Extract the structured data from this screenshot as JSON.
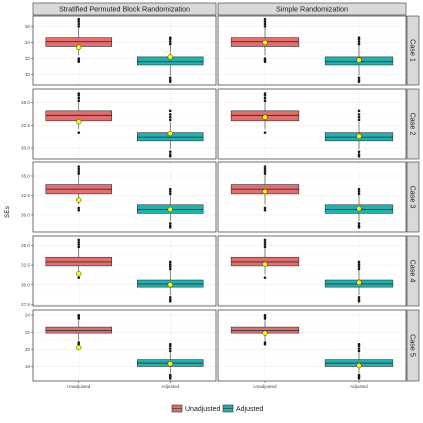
{
  "chart_data": {
    "type": "boxplot",
    "ylabel": "SEs",
    "columns": [
      "Stratified Permuted Block Randomization",
      "Simple Randomization"
    ],
    "rows": [
      "Case 1",
      "Case 2",
      "Case 3",
      "Case 4",
      "Case 5"
    ],
    "categories": [
      "Unadjusted",
      "Adjusted"
    ],
    "legend": {
      "position": "bottom",
      "entries": [
        {
          "name": "Unadjusted",
          "color": "#e26e6e"
        },
        {
          "name": "Adjusted",
          "color": "#1fb3b0"
        }
      ]
    },
    "colors": {
      "unadjusted": "#e26e6e",
      "adjusted": "#1fb3b0",
      "mean_marker": "#ffff00",
      "strip_bg": "#d9d9d9",
      "panel_border": "#333333",
      "grid": "#ebebeb"
    },
    "panels_rows": [
      {
        "label": "Case 1",
        "ylim": [
          28.7,
          37.3
        ],
        "yticks": [
          30,
          32,
          34,
          36
        ],
        "ytick_labels": [
          "30",
          "32",
          "34",
          "36"
        ],
        "cols": [
          {
            "unadjusted": {
              "min": 32.4,
              "q1": 33.5,
              "median": 34.1,
              "q3": 34.6,
              "max": 35.8,
              "mean": 33.4,
              "out_low": [
                32.0,
                31.8,
                31.6
              ],
              "out_high": [
                36.0,
                36.3,
                36.6,
                36.9
              ]
            },
            "adjusted": {
              "min": 29.9,
              "q1": 31.2,
              "median": 31.6,
              "q3": 32.2,
              "max": 33.6,
              "mean": 32.2,
              "out_low": [
                29.6,
                29.3,
                29.1
              ],
              "out_high": [
                33.8,
                34.1,
                34.4,
                34.6
              ]
            }
          },
          {
            "unadjusted": {
              "min": 32.4,
              "q1": 33.5,
              "median": 34.1,
              "q3": 34.6,
              "max": 35.8,
              "mean": 34.0,
              "out_low": [
                32.0,
                31.8,
                31.6
              ],
              "out_high": [
                36.0,
                36.3,
                36.6,
                36.9
              ]
            },
            "adjusted": {
              "min": 29.9,
              "q1": 31.2,
              "median": 31.6,
              "q3": 32.2,
              "max": 33.6,
              "mean": 31.8,
              "out_low": [
                29.6,
                29.3,
                29.1
              ],
              "out_high": [
                33.8,
                34.1,
                34.4,
                34.6
              ]
            }
          }
        ]
      },
      {
        "label": "Case 2",
        "ylim": [
          28.8,
          36.5
        ],
        "yticks": [
          30.0,
          32.5,
          35.0
        ],
        "ytick_labels": [
          "30.0",
          "32.5",
          "35.0"
        ],
        "cols": [
          {
            "unadjusted": {
              "min": 32.1,
              "q1": 33.0,
              "median": 33.6,
              "q3": 34.1,
              "max": 35.0,
              "mean": 32.9,
              "out_low": [
                31.7
              ],
              "out_high": [
                35.2,
                35.5,
                35.8,
                36.0
              ]
            },
            "adjusted": {
              "min": 29.9,
              "q1": 30.8,
              "median": 31.2,
              "q3": 31.7,
              "max": 32.9,
              "mean": 31.6,
              "out_low": [
                29.6,
                29.3,
                29.1
              ],
              "out_high": [
                33.1,
                33.4,
                33.7,
                34.1
              ]
            }
          },
          {
            "unadjusted": {
              "min": 32.1,
              "q1": 33.0,
              "median": 33.6,
              "q3": 34.1,
              "max": 35.0,
              "mean": 33.4,
              "out_low": [
                31.7
              ],
              "out_high": [
                35.2,
                35.5,
                35.8,
                36.0
              ]
            },
            "adjusted": {
              "min": 29.9,
              "q1": 30.8,
              "median": 31.2,
              "q3": 31.7,
              "max": 32.9,
              "mean": 31.3,
              "out_low": [
                29.6,
                29.3,
                29.1
              ],
              "out_high": [
                33.1,
                33.4,
                33.7,
                34.1
              ]
            }
          }
        ]
      },
      {
        "label": "Case 3",
        "ylim": [
          27.8,
          36.8
        ],
        "yticks": [
          30.0,
          32.5,
          35.0
        ],
        "ytick_labels": [
          "30.0",
          "32.5",
          "35.0"
        ],
        "cols": [
          {
            "unadjusted": {
              "min": 31.4,
              "q1": 32.7,
              "median": 33.3,
              "q3": 33.9,
              "max": 35.1,
              "mean": 31.9,
              "out_low": [
                30.9,
                30.6
              ],
              "out_high": [
                35.3,
                35.6,
                35.9,
                36.2
              ]
            },
            "adjusted": {
              "min": 29.2,
              "q1": 30.2,
              "median": 30.7,
              "q3": 31.3,
              "max": 32.5,
              "mean": 30.7,
              "out_low": [
                28.9,
                28.6,
                28.4
              ],
              "out_high": [
                32.7,
                33.0,
                33.3
              ]
            }
          },
          {
            "unadjusted": {
              "min": 31.4,
              "q1": 32.7,
              "median": 33.3,
              "q3": 33.9,
              "max": 35.1,
              "mean": 33.0,
              "out_low": [
                30.9,
                30.6
              ],
              "out_high": [
                35.3,
                35.6,
                35.9,
                36.2
              ]
            },
            "adjusted": {
              "min": 29.2,
              "q1": 30.2,
              "median": 30.7,
              "q3": 31.3,
              "max": 32.5,
              "mean": 30.8,
              "out_low": [
                28.9,
                28.6,
                28.4
              ],
              "out_high": [
                32.7,
                33.0,
                33.3
              ]
            }
          }
        ]
      },
      {
        "label": "Case 4",
        "ylim": [
          27.3,
          36.2
        ],
        "yticks": [
          27.5,
          30.0,
          32.5,
          35.0
        ],
        "ytick_labels": [
          "27.5",
          "30.0",
          "32.5",
          "35.0"
        ],
        "cols": [
          {
            "unadjusted": {
              "min": 31.3,
              "q1": 32.4,
              "median": 32.9,
              "q3": 33.5,
              "max": 34.6,
              "mean": 31.4,
              "out_low": [
                30.9
              ],
              "out_high": [
                34.8,
                35.1,
                35.4,
                35.7
              ]
            },
            "adjusted": {
              "min": 28.7,
              "q1": 29.7,
              "median": 30.1,
              "q3": 30.6,
              "max": 31.8,
              "mean": 30.0,
              "out_low": [
                28.4,
                28.1,
                27.9
              ],
              "out_high": [
                32.0,
                32.3,
                32.6,
                32.9
              ]
            }
          },
          {
            "unadjusted": {
              "min": 31.3,
              "q1": 32.4,
              "median": 32.9,
              "q3": 33.5,
              "max": 34.6,
              "mean": 32.6,
              "out_low": [
                30.9
              ],
              "out_high": [
                34.8,
                35.1,
                35.4,
                35.7
              ]
            },
            "adjusted": {
              "min": 28.7,
              "q1": 29.7,
              "median": 30.1,
              "q3": 30.6,
              "max": 31.8,
              "mean": 30.3,
              "out_low": [
                28.4,
                28.1,
                27.9
              ],
              "out_high": [
                32.0,
                32.3,
                32.6,
                32.9
              ]
            }
          }
        ]
      },
      {
        "label": "Case 5",
        "ylim": [
          16.3,
          24.6
        ],
        "yticks": [
          18,
          20,
          22,
          24
        ],
        "ytick_labels": [
          "18",
          "20",
          "22",
          "24"
        ],
        "cols": [
          {
            "unadjusted": {
              "min": 21.0,
              "q1": 21.9,
              "median": 22.2,
              "q3": 22.6,
              "max": 23.4,
              "mean": 20.2,
              "out_low": [
                20.8,
                20.6
              ],
              "out_high": [
                23.6,
                23.8,
                24.0
              ]
            },
            "adjusted": {
              "min": 17.2,
              "q1": 18.0,
              "median": 18.4,
              "q3": 18.8,
              "max": 19.6,
              "mean": 18.3,
              "out_low": [
                17.0,
                16.8,
                16.6
              ],
              "out_high": [
                19.8,
                20.1,
                20.4,
                20.6
              ]
            }
          },
          {
            "unadjusted": {
              "min": 21.0,
              "q1": 21.9,
              "median": 22.2,
              "q3": 22.6,
              "max": 23.4,
              "mean": 21.9,
              "out_low": [
                20.8,
                20.6
              ],
              "out_high": [
                23.6,
                23.8,
                24.0
              ]
            },
            "adjusted": {
              "min": 17.2,
              "q1": 18.0,
              "median": 18.4,
              "q3": 18.8,
              "max": 19.6,
              "mean": 18.1,
              "out_low": [
                17.0,
                16.8,
                16.6
              ],
              "out_high": [
                19.8,
                20.1,
                20.4,
                20.6
              ]
            }
          }
        ]
      }
    ]
  }
}
